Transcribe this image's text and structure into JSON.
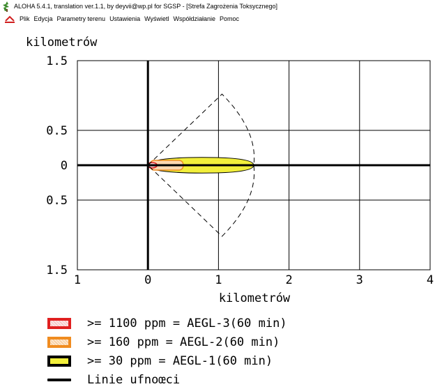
{
  "window": {
    "title": "ALOHA 5.4.1, translation ver.1.1, by deyvii@wp.pl for SGSP - [Strefa Zagrożenia Toksycznego]"
  },
  "menu": {
    "items": [
      "Plik",
      "Edycja",
      "Parametry terenu",
      "Ustawienia",
      "Wyświetl",
      "Współdziałanie",
      "Pomoc"
    ]
  },
  "chart_data": {
    "type": "threat-zone",
    "ylabel": "kilometrów",
    "xlabel": "kilometrów",
    "xlim": [
      -1,
      4
    ],
    "ylim": [
      -1.5,
      1.5
    ],
    "x_tick_labels": [
      "1",
      "0",
      "1",
      "2",
      "3",
      "4"
    ],
    "y_tick_labels": [
      "1.5",
      "0.5",
      "0",
      "0.5",
      "1.5"
    ],
    "grid": true,
    "zones": [
      {
        "name": "AEGL-3",
        "label": ">= 1100 ppm = AEGL-3(60 min)",
        "color": "#e02020",
        "max_distance_km": 0.08
      },
      {
        "name": "AEGL-2",
        "label": ">= 160 ppm = AEGL-2(60 min)",
        "color": "#f08c20",
        "max_distance_km": 0.5
      },
      {
        "name": "AEGL-1",
        "label": ">= 30 ppm = AEGL-1(60 min)",
        "color": "#f2ef3b",
        "max_distance_km": 1.5
      }
    ],
    "confidence_lines": {
      "label": "Linie ufnoœci",
      "color": "#000000"
    }
  },
  "legend": {
    "items": [
      ">= 1100 ppm = AEGL-3(60 min)",
      ">= 160 ppm = AEGL-2(60 min)",
      ">= 30 ppm = AEGL-1(60 min)",
      "Linie ufnoœci"
    ]
  }
}
